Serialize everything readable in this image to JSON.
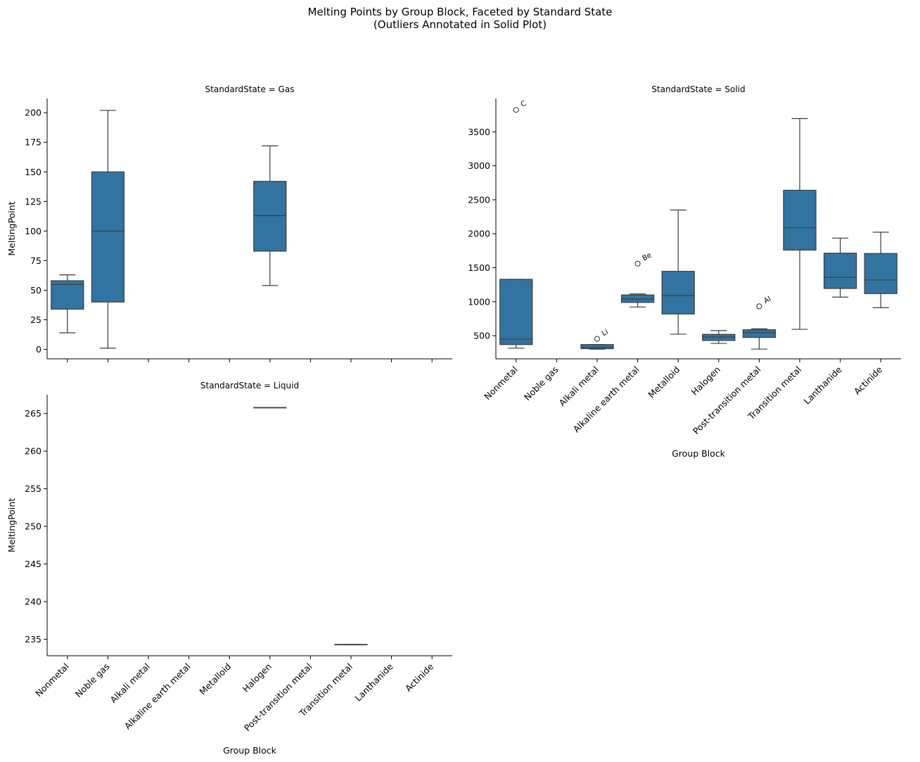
{
  "figure": {
    "title_line1": "Melting Points by Group Block, Faceted by Standard State",
    "title_line2": "(Outliers Annotated in Solid Plot)"
  },
  "colors": {
    "box_fill": "#3274a1",
    "line": "#3d3d3d",
    "axis": "#000000"
  },
  "chart_data": [
    {
      "type": "box",
      "facet": "Gas",
      "title": "StandardState = Gas",
      "xlabel": "",
      "ylabel": "MeltingPoint",
      "ylim": [
        -8,
        212
      ],
      "yticks": [
        0,
        25,
        50,
        75,
        100,
        125,
        150,
        175,
        200
      ],
      "show_xtick_labels": false,
      "categories": [
        "Nonmetal",
        "Noble gas",
        "Alkali metal",
        "Alkaline earth metal",
        "Metalloid",
        "Halogen",
        "Post-transition metal",
        "Transition metal",
        "Lanthanide",
        "Actinide"
      ],
      "boxes": [
        {
          "category": "Nonmetal",
          "whislo": 14,
          "q1": 34,
          "med": 55,
          "q3": 58,
          "whishi": 63
        },
        {
          "category": "Noble gas",
          "whislo": 1,
          "q1": 40,
          "med": 100,
          "q3": 150,
          "whishi": 202
        },
        {
          "category": "Halogen",
          "whislo": 54,
          "q1": 83,
          "med": 113,
          "q3": 142,
          "whishi": 172
        }
      ],
      "outliers": []
    },
    {
      "type": "box",
      "facet": "Solid",
      "title": "StandardState = Solid",
      "xlabel": "Group Block",
      "ylabel": "",
      "ylim": [
        160,
        3990
      ],
      "yticks": [
        500,
        1000,
        1500,
        2000,
        2500,
        3000,
        3500
      ],
      "show_xtick_labels": true,
      "categories": [
        "Nonmetal",
        "Noble gas",
        "Alkali metal",
        "Alkaline earth metal",
        "Metalloid",
        "Halogen",
        "Post-transition metal",
        "Transition metal",
        "Lanthanide",
        "Actinide"
      ],
      "boxes": [
        {
          "category": "Nonmetal",
          "whislo": 317,
          "q1": 370,
          "med": 450,
          "q3": 1330,
          "whishi": 1330
        },
        {
          "category": "Alkali metal",
          "whislo": 302,
          "q1": 310,
          "med": 330,
          "q3": 370,
          "whishi": 371
        },
        {
          "category": "Alkaline earth metal",
          "whislo": 923,
          "q1": 990,
          "med": 1040,
          "q3": 1100,
          "whishi": 1115
        },
        {
          "category": "Metalloid",
          "whislo": 523,
          "q1": 820,
          "med": 1090,
          "q3": 1447,
          "whishi": 2349
        },
        {
          "category": "Halogen",
          "whislo": 387,
          "q1": 430,
          "med": 480,
          "q3": 520,
          "whishi": 575
        },
        {
          "category": "Post-transition metal",
          "whislo": 303,
          "q1": 475,
          "med": 545,
          "q3": 588,
          "whishi": 601
        },
        {
          "category": "Transition metal",
          "whislo": 594,
          "q1": 1760,
          "med": 2090,
          "q3": 2640,
          "whishi": 3695
        },
        {
          "category": "Lanthanide",
          "whislo": 1068,
          "q1": 1195,
          "med": 1360,
          "q3": 1715,
          "whishi": 1936
        },
        {
          "category": "Actinide",
          "whislo": 913,
          "q1": 1120,
          "med": 1320,
          "q3": 1710,
          "whishi": 2023
        }
      ],
      "outliers": [
        {
          "category": "Nonmetal",
          "value": 3823,
          "label": "C"
        },
        {
          "category": "Alkali metal",
          "value": 454,
          "label": "Li"
        },
        {
          "category": "Alkaline earth metal",
          "value": 1560,
          "label": "Be"
        },
        {
          "category": "Post-transition metal",
          "value": 933,
          "label": "Al"
        }
      ]
    },
    {
      "type": "box",
      "facet": "Liquid",
      "title": "StandardState = Liquid",
      "xlabel": "Group Block",
      "ylabel": "MeltingPoint",
      "ylim": [
        232.8,
        267.5
      ],
      "yticks": [
        235,
        240,
        245,
        250,
        255,
        260,
        265
      ],
      "show_xtick_labels": true,
      "categories": [
        "Nonmetal",
        "Noble gas",
        "Alkali metal",
        "Alkaline earth metal",
        "Metalloid",
        "Halogen",
        "Post-transition metal",
        "Transition metal",
        "Lanthanide",
        "Actinide"
      ],
      "boxes": [
        {
          "category": "Halogen",
          "whislo": 265.8,
          "q1": 265.8,
          "med": 265.8,
          "q3": 265.8,
          "whishi": 265.8
        },
        {
          "category": "Transition metal",
          "whislo": 234.3,
          "q1": 234.3,
          "med": 234.3,
          "q3": 234.3,
          "whishi": 234.3
        }
      ],
      "outliers": []
    }
  ]
}
